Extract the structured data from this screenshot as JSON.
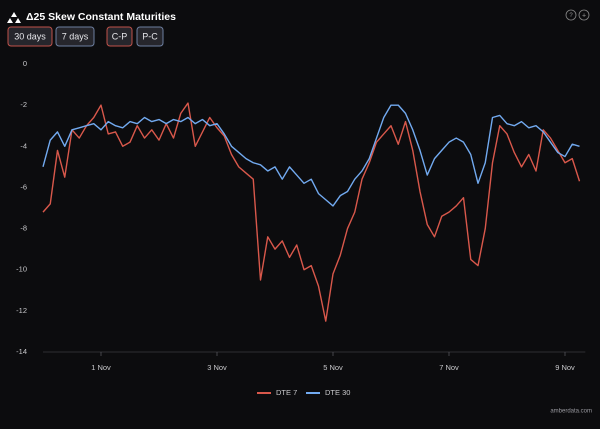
{
  "controls": {
    "buttons": [
      "30 days",
      "7 days",
      "C-P",
      "P-C"
    ]
  },
  "watermark": "amberdata.com",
  "chart_data": {
    "type": "line",
    "title": "Δ25 Skew Constant Maturities",
    "x": [
      0,
      0.125,
      0.25,
      0.375,
      0.5,
      0.625,
      0.75,
      0.875,
      1,
      1.125,
      1.25,
      1.375,
      1.5,
      1.625,
      1.75,
      1.875,
      2,
      2.125,
      2.25,
      2.375,
      2.5,
      2.625,
      2.75,
      2.875,
      3,
      3.125,
      3.25,
      3.375,
      3.5,
      3.625,
      3.75,
      3.875,
      4,
      4.125,
      4.25,
      4.375,
      4.5,
      4.625,
      4.75,
      4.875,
      5,
      5.125,
      5.25,
      5.375,
      5.5,
      5.625,
      5.75,
      5.875,
      6,
      6.125,
      6.25,
      6.375,
      6.5,
      6.625,
      6.75,
      6.875,
      7,
      7.125,
      7.25,
      7.375,
      7.5,
      7.625,
      7.75,
      7.875,
      8,
      8.125,
      8.25,
      8.375,
      8.5,
      8.625,
      8.75,
      8.875,
      9,
      9.125,
      9.25
    ],
    "series": [
      {
        "name": "DTE 7",
        "color": "#d9584b",
        "values": [
          -7.2,
          -6.8,
          -4.2,
          -5.5,
          -3.2,
          -3.6,
          -3.0,
          -2.6,
          -2.0,
          -3.4,
          -3.3,
          -4.0,
          -3.8,
          -3.0,
          -3.6,
          -3.2,
          -3.7,
          -2.9,
          -3.6,
          -2.4,
          -1.9,
          -4.0,
          -3.3,
          -2.6,
          -3.1,
          -3.5,
          -4.4,
          -5.0,
          -5.3,
          -5.6,
          -10.5,
          -8.4,
          -9.0,
          -8.6,
          -9.4,
          -8.8,
          -10.0,
          -9.8,
          -10.8,
          -12.5,
          -10.2,
          -9.3,
          -8.0,
          -7.2,
          -5.6,
          -4.8,
          -3.8,
          -3.4,
          -3.0,
          -3.9,
          -2.8,
          -4.2,
          -6.2,
          -7.8,
          -8.4,
          -7.4,
          -7.2,
          -6.9,
          -6.5,
          -9.5,
          -9.8,
          -8.0,
          -4.8,
          -3.0,
          -3.4,
          -4.3,
          -5.0,
          -4.4,
          -5.2,
          -3.2,
          -3.6,
          -4.2,
          -4.8,
          -4.6,
          -5.7
        ]
      },
      {
        "name": "DTE 30",
        "color": "#72aaf0",
        "values": [
          -5.0,
          -3.7,
          -3.3,
          -4.0,
          -3.2,
          -3.1,
          -3.0,
          -2.9,
          -3.2,
          -2.8,
          -3.0,
          -3.1,
          -2.8,
          -2.9,
          -2.6,
          -2.8,
          -2.7,
          -2.9,
          -2.7,
          -2.8,
          -2.6,
          -2.9,
          -2.7,
          -3.0,
          -2.9,
          -3.4,
          -4.0,
          -4.3,
          -4.6,
          -4.8,
          -4.9,
          -5.2,
          -5.0,
          -5.6,
          -5.0,
          -5.4,
          -5.8,
          -5.6,
          -6.3,
          -6.6,
          -6.9,
          -6.4,
          -6.2,
          -5.6,
          -5.2,
          -4.6,
          -3.6,
          -2.6,
          -2.0,
          -2.0,
          -2.4,
          -3.2,
          -4.2,
          -5.4,
          -4.6,
          -4.2,
          -3.8,
          -3.6,
          -3.8,
          -4.4,
          -5.8,
          -4.8,
          -2.6,
          -2.5,
          -2.9,
          -3.0,
          -2.8,
          -3.1,
          -3.0,
          -3.3,
          -3.8,
          -4.3,
          -4.5,
          -3.9,
          -4.0
        ]
      }
    ],
    "xlim": [
      0,
      9.35
    ],
    "xticks": [
      {
        "value": 1,
        "label": "1 Nov"
      },
      {
        "value": 3,
        "label": "3 Nov"
      },
      {
        "value": 5,
        "label": "5 Nov"
      },
      {
        "value": 7,
        "label": "7 Nov"
      },
      {
        "value": 9,
        "label": "9 Nov"
      }
    ],
    "ylim": [
      -14,
      0
    ],
    "yticks": [
      0,
      -2,
      -4,
      -6,
      -8,
      -10,
      -12,
      -14
    ],
    "grid": false,
    "legend": "bottom"
  }
}
